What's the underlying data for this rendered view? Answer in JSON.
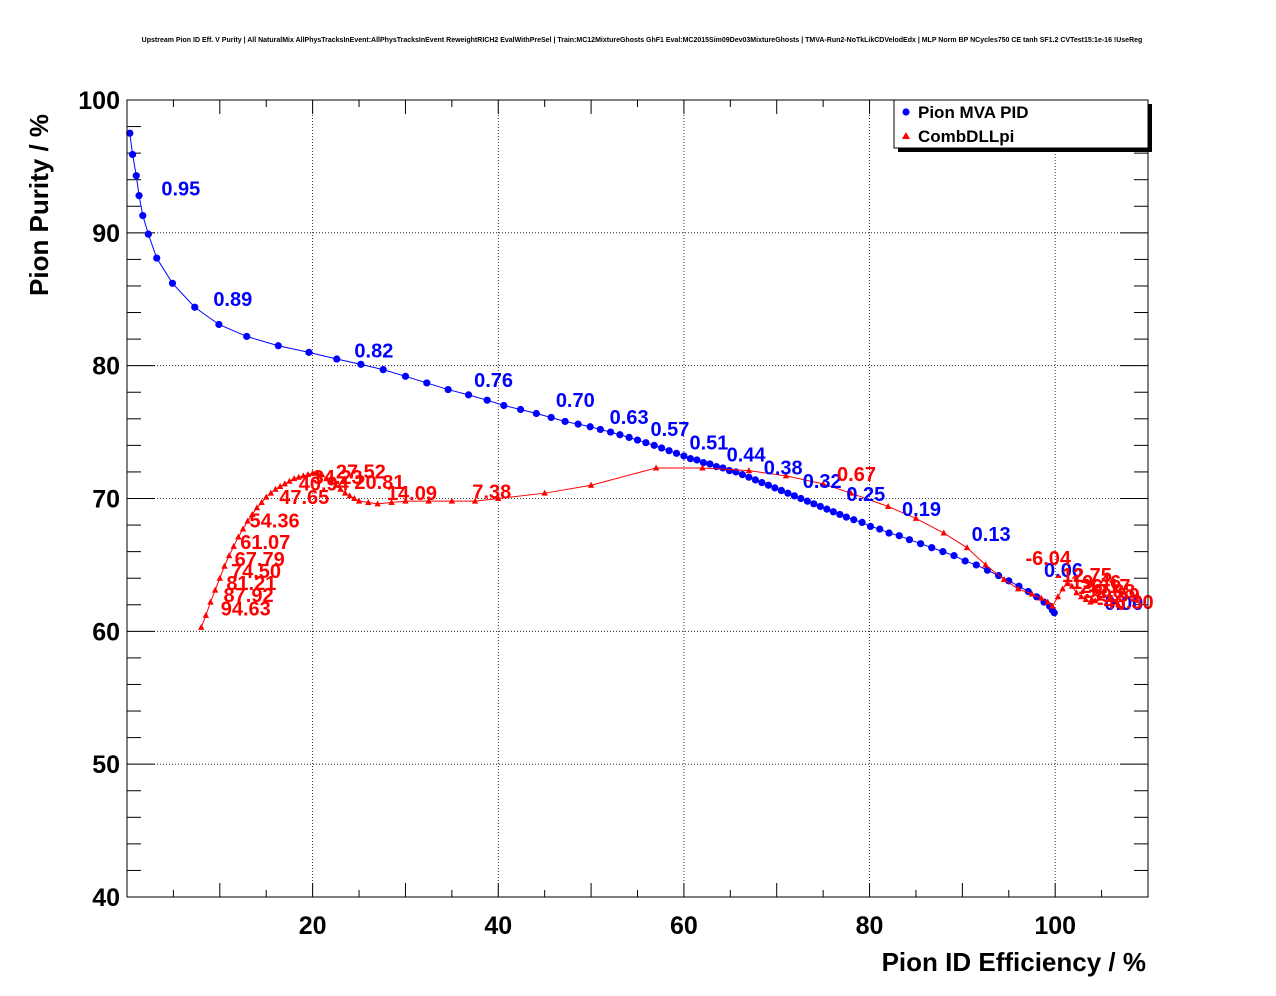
{
  "chart_data": {
    "type": "line",
    "title": "Upstream Pion ID Eff. V Purity | All NaturalMix AllPhysTracksInEvent:AllPhysTracksInEvent ReweightRICH2 EvalWithPreSel | Train:MC12MixtureGhosts GhF1 Eval:MC2015Sim09Dev03MixtureGhosts | TMVA-Run2-NoTkLikCDVelodEdx | MLP Norm BP NCycles750 CE tanh SF1.2 CVTest15:1e-16 !UseReg",
    "xlabel": "Pion ID Efficiency / %",
    "ylabel": "Pion Purity / %",
    "xlim": [
      0,
      110
    ],
    "ylim": [
      40,
      100
    ],
    "x_ticks": [
      20,
      40,
      60,
      80,
      100
    ],
    "y_ticks": [
      40,
      50,
      60,
      70,
      80,
      90,
      100
    ],
    "grid": true,
    "legend_position": "top-right",
    "colors": {
      "mva": "#0000ff",
      "dll": "#ff0000"
    },
    "series": [
      {
        "name": "Pion MVA PID",
        "marker": "circle",
        "x": [
          0.3,
          0.6,
          1.0,
          1.3,
          1.7,
          2.3,
          3.2,
          4.9,
          7.3,
          9.9,
          12.9,
          16.3,
          19.6,
          22.6,
          25.2,
          27.6,
          30.0,
          32.3,
          34.6,
          36.8,
          38.8,
          40.6,
          42.4,
          44.1,
          45.7,
          47.2,
          48.6,
          49.9,
          51.0,
          52.1,
          53.1,
          54.1,
          55.0,
          55.9,
          56.8,
          57.6,
          58.4,
          59.2,
          60.0,
          60.7,
          61.4,
          62.1,
          62.8,
          63.5,
          64.2,
          64.9,
          65.6,
          66.3,
          67.0,
          67.7,
          68.4,
          69.1,
          69.8,
          70.5,
          71.2,
          71.9,
          72.6,
          73.3,
          74.0,
          74.7,
          75.4,
          76.1,
          76.8,
          77.5,
          78.3,
          79.2,
          80.1,
          81.1,
          82.1,
          83.2,
          84.3,
          85.5,
          86.7,
          87.9,
          89.1,
          90.3,
          91.5,
          92.7,
          93.9,
          95.0,
          96.1,
          97.1,
          98.0,
          98.8,
          99.4,
          99.7,
          99.9
        ],
        "y": [
          97.5,
          95.9,
          94.3,
          92.8,
          91.3,
          89.9,
          88.1,
          86.2,
          84.4,
          83.1,
          82.2,
          81.5,
          81.0,
          80.5,
          80.1,
          79.7,
          79.2,
          78.7,
          78.2,
          77.8,
          77.4,
          77.0,
          76.7,
          76.4,
          76.1,
          75.8,
          75.6,
          75.4,
          75.2,
          75.0,
          74.8,
          74.6,
          74.4,
          74.2,
          74.0,
          73.8,
          73.6,
          73.4,
          73.2,
          73.0,
          72.9,
          72.7,
          72.6,
          72.4,
          72.3,
          72.1,
          72.0,
          71.8,
          71.6,
          71.4,
          71.2,
          71.0,
          70.8,
          70.6,
          70.4,
          70.2,
          70.0,
          69.8,
          69.6,
          69.4,
          69.2,
          69.0,
          68.8,
          68.6,
          68.4,
          68.2,
          67.9,
          67.7,
          67.4,
          67.2,
          66.9,
          66.6,
          66.3,
          66.0,
          65.7,
          65.3,
          65.0,
          64.6,
          64.2,
          63.8,
          63.4,
          63.0,
          62.6,
          62.2,
          61.9,
          61.6,
          61.4
        ],
        "labels": [
          {
            "text": "0.95",
            "x": 3.7,
            "y": 92.8
          },
          {
            "text": "0.89",
            "x": 9.3,
            "y": 84.5
          },
          {
            "text": "0.82",
            "x": 24.5,
            "y": 80.6
          },
          {
            "text": "0.76",
            "x": 37.4,
            "y": 78.4
          },
          {
            "text": "0.70",
            "x": 46.2,
            "y": 76.9
          },
          {
            "text": "0.63",
            "x": 52.0,
            "y": 75.6
          },
          {
            "text": "0.57",
            "x": 56.4,
            "y": 74.7
          },
          {
            "text": "0.51",
            "x": 60.6,
            "y": 73.7
          },
          {
            "text": "0.44",
            "x": 64.6,
            "y": 72.8
          },
          {
            "text": "0.38",
            "x": 68.6,
            "y": 71.8
          },
          {
            "text": "0.32",
            "x": 72.8,
            "y": 70.8
          },
          {
            "text": "0.25",
            "x": 77.5,
            "y": 69.8
          },
          {
            "text": "0.19",
            "x": 83.5,
            "y": 68.7
          },
          {
            "text": "0.13",
            "x": 91.0,
            "y": 66.8
          },
          {
            "text": "0.06",
            "x": 98.8,
            "y": 64.1
          },
          {
            "text": "0.00",
            "x": 105.3,
            "y": 61.6
          }
        ]
      },
      {
        "name": "CombDLLpi",
        "marker": "triangle",
        "x": [
          8.0,
          8.5,
          9.0,
          9.5,
          10.0,
          10.5,
          11.0,
          11.5,
          12.0,
          12.5,
          13.0,
          13.5,
          14.0,
          14.5,
          15.0,
          15.5,
          16.0,
          16.5,
          17.0,
          17.5,
          18.0,
          18.5,
          19.0,
          19.5,
          20.0,
          20.5,
          21.0,
          21.5,
          22.0,
          22.5,
          23.0,
          23.5,
          24.0,
          24.5,
          25.0,
          26.0,
          27.0,
          28.5,
          30.0,
          32.5,
          35.0,
          37.5,
          40.0,
          45.0,
          50.0,
          57.0,
          62.0,
          67.0,
          71.0,
          75.0,
          78.0,
          82.0,
          85.0,
          88.0,
          90.5,
          92.5,
          94.5,
          96.0,
          97.5,
          98.5,
          99.2,
          99.7,
          100.3,
          100.8,
          101.3,
          101.8,
          102.3,
          102.8,
          103.3,
          103.8,
          104.3,
          104.8,
          105.3,
          105.8,
          106.3,
          106.8,
          107.3
        ],
        "y": [
          60.3,
          61.2,
          62.2,
          63.1,
          64.0,
          64.9,
          65.7,
          66.4,
          67.1,
          67.7,
          68.3,
          68.8,
          69.3,
          69.7,
          70.1,
          70.4,
          70.7,
          70.9,
          71.1,
          71.3,
          71.5,
          71.6,
          71.7,
          71.8,
          71.9,
          71.9,
          71.8,
          71.5,
          71.3,
          71.0,
          70.7,
          70.4,
          70.2,
          70.0,
          69.8,
          69.7,
          69.6,
          69.7,
          69.8,
          69.8,
          69.8,
          69.8,
          70.0,
          70.4,
          71.0,
          72.3,
          72.3,
          72.1,
          71.7,
          71.1,
          70.4,
          69.4,
          68.5,
          67.4,
          66.3,
          65.0,
          63.9,
          63.2,
          62.8,
          62.5,
          62.2,
          61.9,
          62.6,
          63.2,
          63.6,
          63.4,
          62.9,
          62.6,
          62.4,
          62.2,
          62.3,
          62.5,
          62.7,
          62.4,
          62.2,
          62.0,
          61.8
        ],
        "labels": [
          {
            "text": "94.63",
            "x": 10.1,
            "y": 61.2
          },
          {
            "text": "87.92",
            "x": 10.4,
            "y": 62.2
          },
          {
            "text": "81.21",
            "x": 10.7,
            "y": 63.1
          },
          {
            "text": "74.50",
            "x": 11.2,
            "y": 64.0
          },
          {
            "text": "67.79",
            "x": 11.6,
            "y": 64.9
          },
          {
            "text": "61.07",
            "x": 12.2,
            "y": 66.2
          },
          {
            "text": "54.36",
            "x": 13.2,
            "y": 67.8
          },
          {
            "text": "47.65",
            "x": 16.4,
            "y": 69.6
          },
          {
            "text": "40.94",
            "x": 18.5,
            "y": 70.6
          },
          {
            "text": "34.23",
            "x": 20.0,
            "y": 71.1
          },
          {
            "text": "27.52",
            "x": 22.5,
            "y": 71.5
          },
          {
            "text": "20.81",
            "x": 24.5,
            "y": 70.7
          },
          {
            "text": "14.09",
            "x": 28.0,
            "y": 69.9
          },
          {
            "text": "7.38",
            "x": 37.2,
            "y": 70.0
          },
          {
            "text": "0.67",
            "x": 76.5,
            "y": 71.3
          },
          {
            "text": "-6.04",
            "x": 96.8,
            "y": 65.0
          },
          {
            "text": "-12.75",
            "x": 100.0,
            "y": 63.7
          },
          {
            "text": "-19.46",
            "x": 101.0,
            "y": 63.2
          },
          {
            "text": "-26.17",
            "x": 102.0,
            "y": 62.9
          },
          {
            "text": "-32.88",
            "x": 102.5,
            "y": 62.5
          },
          {
            "text": "-39.59",
            "x": 103.0,
            "y": 62.2
          },
          {
            "text": "-46.30",
            "x": 104.5,
            "y": 61.7
          }
        ]
      }
    ]
  }
}
